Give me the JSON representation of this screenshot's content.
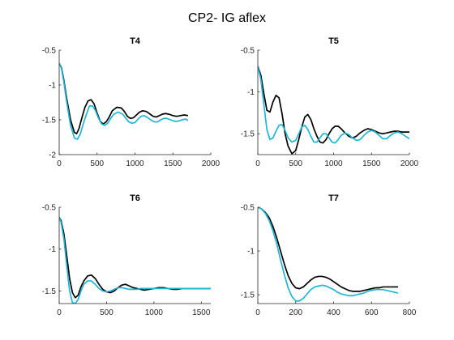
{
  "figure_title": "CP2- IG aflex",
  "colors": {
    "series_black": "#000000",
    "series_cyan": "#1fb5d6",
    "axis": "#262626"
  },
  "chart_data": [
    {
      "type": "line",
      "title": "T4",
      "xlim": [
        0,
        2000
      ],
      "ylim": [
        -2,
        -0.5
      ],
      "xticks": [
        0,
        500,
        1000,
        1500,
        2000
      ],
      "yticks": [
        -2,
        -1.5,
        -1,
        -0.5
      ],
      "xtick_labels": [
        "0",
        "500",
        "1000",
        "1500",
        "2000"
      ],
      "ytick_labels": [
        "-2",
        "-1.5",
        "-1",
        "-0.5"
      ],
      "series": [
        {
          "color": "#000000",
          "x": [
            0,
            30,
            60,
            100,
            150,
            200,
            230,
            260,
            300,
            340,
            380,
            420,
            460,
            500,
            540,
            580,
            620,
            660,
            700,
            760,
            820,
            860,
            900,
            940,
            980,
            1020,
            1060,
            1100,
            1150,
            1200,
            1240,
            1280,
            1320,
            1360,
            1400,
            1450,
            1500,
            1550,
            1600,
            1650,
            1700
          ],
          "y": [
            -0.69,
            -0.75,
            -0.92,
            -1.2,
            -1.5,
            -1.68,
            -1.7,
            -1.63,
            -1.47,
            -1.32,
            -1.23,
            -1.21,
            -1.27,
            -1.4,
            -1.52,
            -1.56,
            -1.53,
            -1.46,
            -1.37,
            -1.32,
            -1.33,
            -1.38,
            -1.45,
            -1.48,
            -1.47,
            -1.43,
            -1.39,
            -1.37,
            -1.38,
            -1.42,
            -1.45,
            -1.46,
            -1.44,
            -1.42,
            -1.41,
            -1.42,
            -1.44,
            -1.45,
            -1.44,
            -1.43,
            -1.44
          ]
        },
        {
          "color": "#1fb5d6",
          "x": [
            0,
            30,
            60,
            100,
            150,
            200,
            240,
            280,
            320,
            360,
            400,
            440,
            480,
            520,
            560,
            600,
            640,
            680,
            720,
            780,
            840,
            880,
            920,
            960,
            1000,
            1040,
            1080,
            1120,
            1170,
            1220,
            1260,
            1300,
            1340,
            1380,
            1420,
            1470,
            1520,
            1570,
            1620,
            1670,
            1700
          ],
          "y": [
            -0.69,
            -0.76,
            -0.95,
            -1.25,
            -1.58,
            -1.76,
            -1.78,
            -1.7,
            -1.55,
            -1.42,
            -1.3,
            -1.3,
            -1.37,
            -1.48,
            -1.56,
            -1.58,
            -1.55,
            -1.48,
            -1.42,
            -1.39,
            -1.42,
            -1.48,
            -1.53,
            -1.55,
            -1.54,
            -1.49,
            -1.45,
            -1.44,
            -1.47,
            -1.51,
            -1.53,
            -1.53,
            -1.5,
            -1.48,
            -1.48,
            -1.5,
            -1.52,
            -1.52,
            -1.5,
            -1.49,
            -1.51
          ]
        }
      ]
    },
    {
      "type": "line",
      "title": "T5",
      "xlim": [
        0,
        2000
      ],
      "ylim": [
        -1.75,
        -0.5
      ],
      "xticks": [
        0,
        500,
        1000,
        1500,
        2000
      ],
      "yticks": [
        -1.5,
        -1,
        -0.5
      ],
      "xtick_labels": [
        "0",
        "500",
        "1000",
        "1500",
        "2000"
      ],
      "ytick_labels": [
        "-1.5",
        "-1",
        "-0.5"
      ],
      "series": [
        {
          "color": "#000000",
          "x": [
            0,
            40,
            80,
            120,
            160,
            200,
            240,
            280,
            320,
            360,
            400,
            450,
            500,
            540,
            580,
            620,
            660,
            700,
            740,
            780,
            820,
            860,
            900,
            940,
            980,
            1020,
            1060,
            1100,
            1150,
            1200,
            1250,
            1300,
            1350,
            1400,
            1450,
            1500,
            1550,
            1600,
            1650,
            1700,
            1750,
            1800,
            1850,
            1900,
            1950,
            2000
          ],
          "y": [
            -0.69,
            -0.8,
            -1.02,
            -1.22,
            -1.24,
            -1.12,
            -1.04,
            -1.07,
            -1.26,
            -1.5,
            -1.65,
            -1.74,
            -1.7,
            -1.57,
            -1.42,
            -1.3,
            -1.27,
            -1.33,
            -1.44,
            -1.53,
            -1.6,
            -1.61,
            -1.57,
            -1.5,
            -1.44,
            -1.41,
            -1.41,
            -1.44,
            -1.49,
            -1.53,
            -1.55,
            -1.53,
            -1.49,
            -1.46,
            -1.44,
            -1.45,
            -1.47,
            -1.49,
            -1.5,
            -1.49,
            -1.48,
            -1.47,
            -1.47,
            -1.48,
            -1.48,
            -1.48
          ]
        },
        {
          "color": "#1fb5d6",
          "x": [
            0,
            40,
            80,
            120,
            160,
            200,
            240,
            280,
            320,
            360,
            400,
            450,
            500,
            540,
            580,
            620,
            660,
            700,
            740,
            780,
            820,
            860,
            900,
            940,
            980,
            1020,
            1060,
            1100,
            1150,
            1200,
            1250,
            1300,
            1350,
            1400,
            1450,
            1500,
            1550,
            1600,
            1650,
            1700,
            1750,
            1800,
            1850,
            1900,
            1950,
            2000
          ],
          "y": [
            -0.69,
            -0.85,
            -1.15,
            -1.45,
            -1.57,
            -1.55,
            -1.47,
            -1.4,
            -1.39,
            -1.46,
            -1.55,
            -1.6,
            -1.58,
            -1.5,
            -1.42,
            -1.4,
            -1.45,
            -1.53,
            -1.6,
            -1.6,
            -1.55,
            -1.5,
            -1.5,
            -1.55,
            -1.6,
            -1.61,
            -1.57,
            -1.52,
            -1.49,
            -1.51,
            -1.55,
            -1.58,
            -1.57,
            -1.52,
            -1.48,
            -1.46,
            -1.48,
            -1.52,
            -1.56,
            -1.56,
            -1.52,
            -1.49,
            -1.48,
            -1.5,
            -1.53,
            -1.56
          ]
        }
      ]
    },
    {
      "type": "line",
      "title": "T6",
      "xlim": [
        0,
        1600
      ],
      "ylim": [
        -1.65,
        -0.5
      ],
      "xticks": [
        0,
        500,
        1000,
        1500
      ],
      "yticks": [
        -1.5,
        -1,
        -0.5
      ],
      "xtick_labels": [
        "0",
        "500",
        "1000",
        "1500"
      ],
      "ytick_labels": [
        "-1.5",
        "-1",
        "-0.5"
      ],
      "series": [
        {
          "color": "#000000",
          "x": [
            0,
            20,
            50,
            80,
            110,
            140,
            170,
            200,
            230,
            260,
            300,
            340,
            380,
            420,
            460,
            500,
            540,
            580,
            620,
            660,
            700,
            740,
            780,
            820,
            860,
            900,
            950,
            1000,
            1050,
            1100,
            1150,
            1200,
            1250,
            1300,
            1350,
            1400,
            1450,
            1500,
            1550,
            1600
          ],
          "y": [
            -0.62,
            -0.66,
            -0.82,
            -1.08,
            -1.35,
            -1.52,
            -1.58,
            -1.55,
            -1.45,
            -1.38,
            -1.32,
            -1.31,
            -1.35,
            -1.42,
            -1.48,
            -1.51,
            -1.52,
            -1.5,
            -1.46,
            -1.43,
            -1.42,
            -1.44,
            -1.46,
            -1.47,
            -1.48,
            -1.49,
            -1.48,
            -1.47,
            -1.46,
            -1.46,
            -1.47,
            -1.48,
            -1.48,
            -1.47,
            -1.47,
            -1.47,
            -1.47,
            -1.47,
            -1.47,
            -1.47
          ]
        },
        {
          "color": "#1fb5d6",
          "x": [
            0,
            20,
            50,
            80,
            110,
            140,
            170,
            200,
            230,
            260,
            300,
            340,
            380,
            420,
            460,
            500,
            540,
            580,
            620,
            660,
            700,
            740,
            780,
            820,
            860,
            900,
            950,
            1000,
            1050,
            1100,
            1150,
            1200,
            1250,
            1300,
            1350,
            1400,
            1450,
            1500,
            1550,
            1600
          ],
          "y": [
            -0.62,
            -0.68,
            -0.88,
            -1.2,
            -1.5,
            -1.64,
            -1.65,
            -1.6,
            -1.5,
            -1.42,
            -1.38,
            -1.38,
            -1.42,
            -1.47,
            -1.5,
            -1.51,
            -1.5,
            -1.48,
            -1.46,
            -1.46,
            -1.47,
            -1.48,
            -1.48,
            -1.48,
            -1.47,
            -1.47,
            -1.47,
            -1.47,
            -1.47,
            -1.47,
            -1.47,
            -1.47,
            -1.47,
            -1.47,
            -1.47,
            -1.47,
            -1.47,
            -1.47,
            -1.47,
            -1.47
          ]
        }
      ]
    },
    {
      "type": "line",
      "title": "T7",
      "xlim": [
        0,
        800
      ],
      "ylim": [
        -1.6,
        -0.5
      ],
      "xticks": [
        0,
        200,
        400,
        600,
        800
      ],
      "yticks": [
        -1.5,
        -1,
        -0.5
      ],
      "xtick_labels": [
        "0",
        "200",
        "400",
        "600",
        "800"
      ],
      "ytick_labels": [
        "-1.5",
        "-1",
        "-0.5"
      ],
      "series": [
        {
          "color": "#000000",
          "x": [
            0,
            20,
            40,
            60,
            80,
            100,
            120,
            140,
            160,
            180,
            200,
            220,
            240,
            260,
            280,
            300,
            320,
            340,
            360,
            380,
            400,
            420,
            440,
            460,
            480,
            500,
            520,
            540,
            560,
            580,
            600,
            620,
            640,
            660,
            680,
            700,
            720,
            740
          ],
          "y": [
            -0.5,
            -0.52,
            -0.56,
            -0.62,
            -0.72,
            -0.85,
            -1.0,
            -1.15,
            -1.28,
            -1.37,
            -1.42,
            -1.43,
            -1.41,
            -1.37,
            -1.33,
            -1.3,
            -1.29,
            -1.29,
            -1.3,
            -1.32,
            -1.35,
            -1.38,
            -1.41,
            -1.43,
            -1.45,
            -1.46,
            -1.46,
            -1.46,
            -1.45,
            -1.44,
            -1.43,
            -1.42,
            -1.42,
            -1.41,
            -1.41,
            -1.41,
            -1.41,
            -1.41
          ]
        },
        {
          "color": "#1fb5d6",
          "x": [
            0,
            20,
            40,
            60,
            80,
            100,
            120,
            140,
            160,
            180,
            200,
            220,
            240,
            260,
            280,
            300,
            320,
            340,
            360,
            380,
            400,
            420,
            440,
            460,
            480,
            500,
            520,
            540,
            560,
            580,
            600,
            620,
            640,
            660,
            680,
            700,
            720,
            740
          ],
          "y": [
            -0.5,
            -0.52,
            -0.57,
            -0.65,
            -0.77,
            -0.92,
            -1.1,
            -1.27,
            -1.42,
            -1.52,
            -1.57,
            -1.57,
            -1.54,
            -1.49,
            -1.44,
            -1.41,
            -1.4,
            -1.39,
            -1.4,
            -1.42,
            -1.44,
            -1.47,
            -1.49,
            -1.5,
            -1.51,
            -1.51,
            -1.5,
            -1.49,
            -1.48,
            -1.46,
            -1.45,
            -1.44,
            -1.44,
            -1.44,
            -1.45,
            -1.46,
            -1.47,
            -1.48
          ]
        }
      ]
    }
  ]
}
